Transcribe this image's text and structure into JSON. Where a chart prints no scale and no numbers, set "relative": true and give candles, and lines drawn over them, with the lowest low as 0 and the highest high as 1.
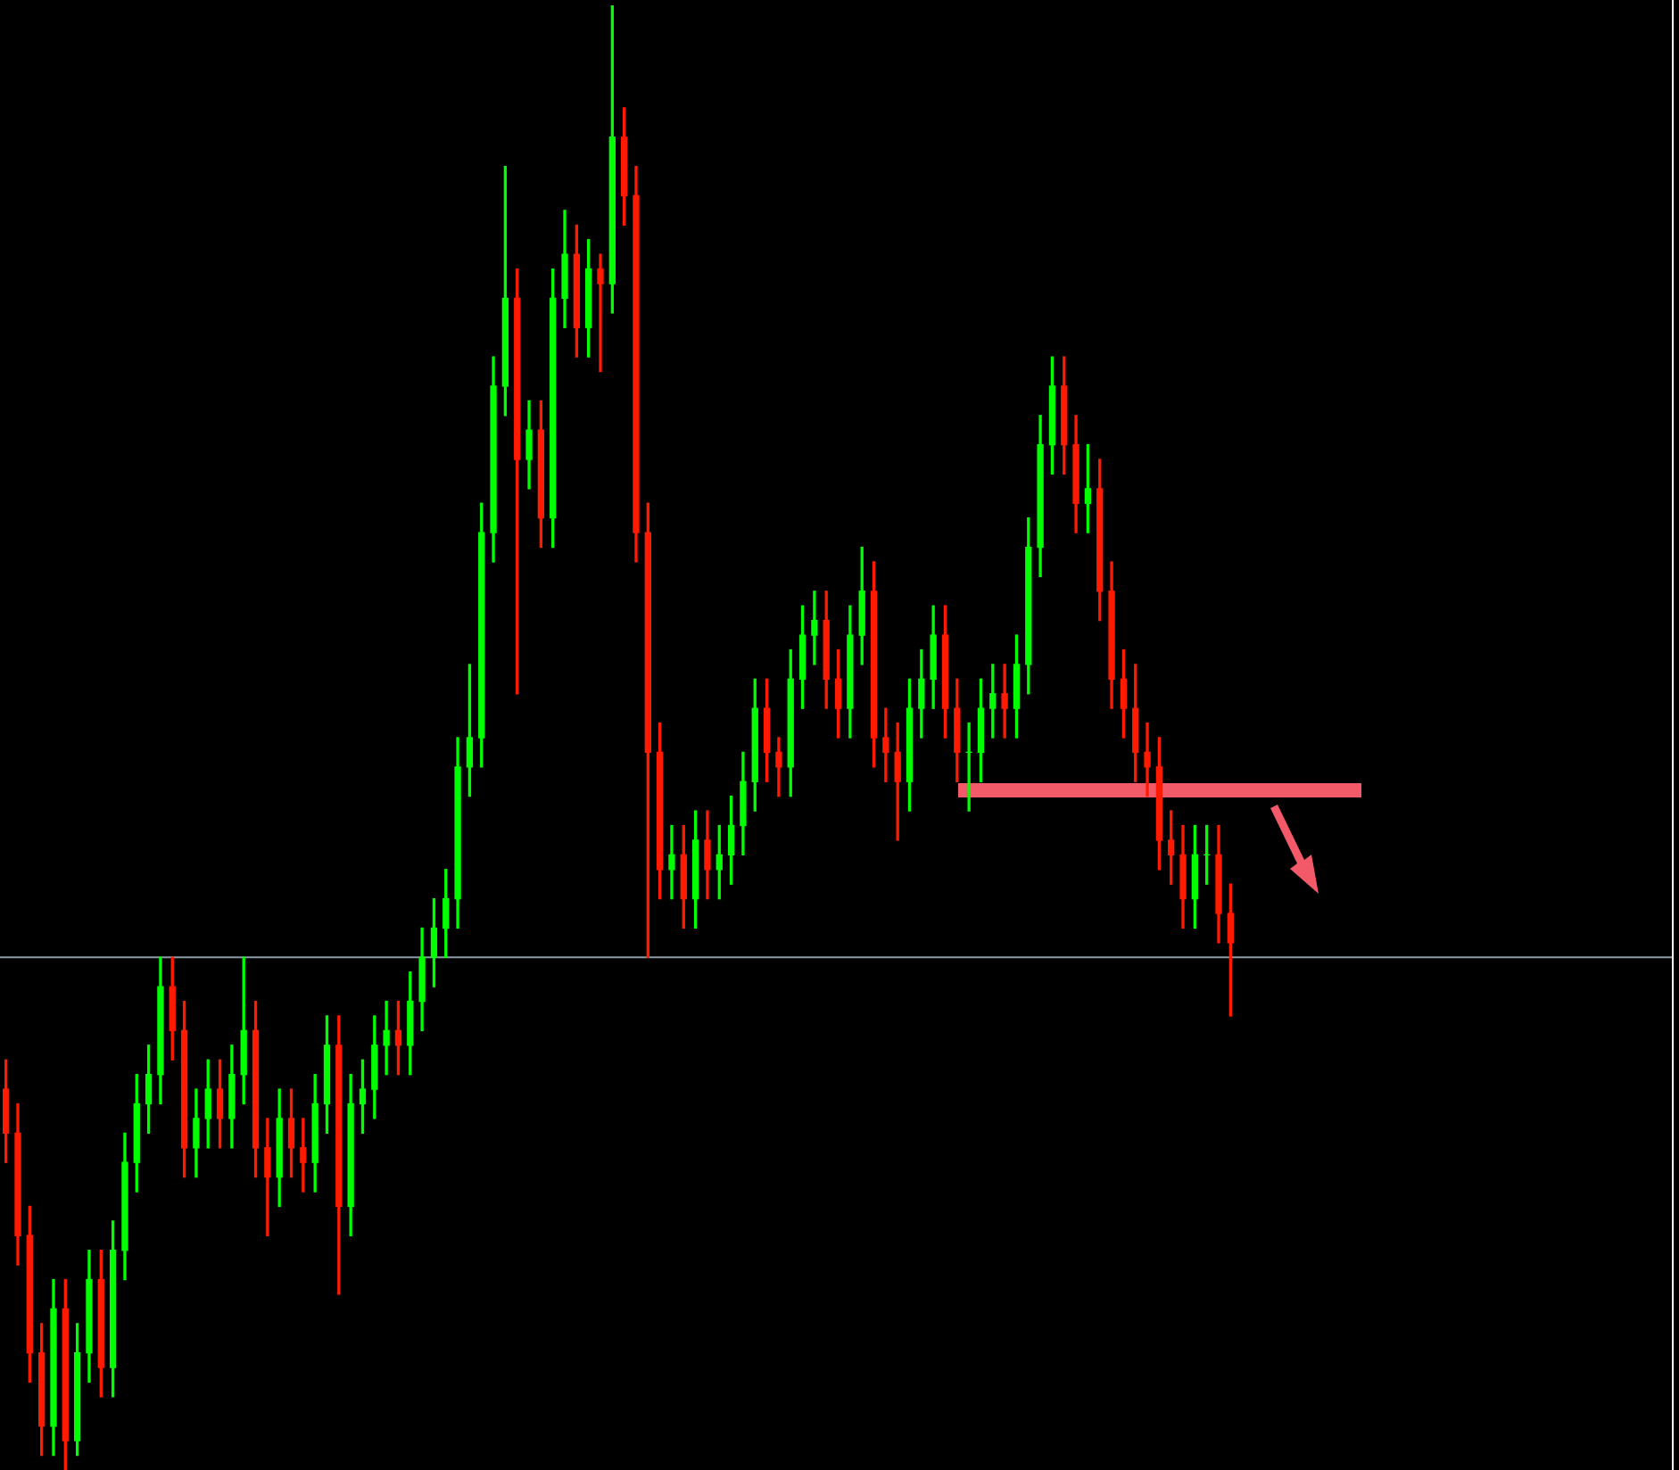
{
  "chart_data": {
    "type": "candlestick",
    "relative": true,
    "colors": [
      "#ff1a00",
      "#ff1a00",
      "#ff1a00",
      "#ff1a00",
      "#00ff00",
      "#ff1a00",
      "#00ff00",
      "#00ff00",
      "#ff1a00",
      "#00ff00",
      "#00ff00",
      "#00ff00",
      "#00ff00",
      "#00ff00",
      "#ff1a00",
      "#ff1a00",
      "#00ff00",
      "#00ff00",
      "#ff1a00",
      "#00ff00",
      "#00ff00",
      "#ff1a00",
      "#ff1a00",
      "#00ff00",
      "#ff1a00",
      "#ff1a00",
      "#00ff00",
      "#00ff00",
      "#ff1a00",
      "#00ff00",
      "#00ff00",
      "#00ff00",
      "#00ff00",
      "#ff1a00",
      "#00ff00",
      "#00ff00",
      "#00ff00",
      "#00ff00",
      "#00ff00",
      "#00ff00",
      "#00ff00",
      "#00ff00",
      "#00ff00",
      "#ff1a00",
      "#00ff00",
      "#ff1a00",
      "#00ff00",
      "#00ff00",
      "#ff1a00",
      "#00ff00",
      "#ff1a00",
      "#00ff00",
      "#ff1a00",
      "#ff1a00",
      "#ff1a00",
      "#ff1a00",
      "#00ff00",
      "#ff1a00",
      "#00ff00",
      "#ff1a00",
      "#00ff00",
      "#00ff00",
      "#00ff00",
      "#00ff00",
      "#ff1a00",
      "#ff1a00",
      "#00ff00",
      "#00ff00",
      "#00ff00",
      "#ff1a00",
      "#ff1a00",
      "#00ff00",
      "#00ff00",
      "#ff1a00",
      "#ff1a00",
      "#ff1a00",
      "#00ff00",
      "#00ff00",
      "#00ff00",
      "#ff1a00",
      "#ff1a00",
      "#00ff00",
      "#00ff00",
      "#00ff00",
      "#ff1a00",
      "#00ff00",
      "#00ff00",
      "#00ff00",
      "#00ff00",
      "#ff1a00",
      "#ff1a00",
      "#00ff00",
      "#ff1a00",
      "#ff1a00",
      "#ff1a00",
      "#ff1a00",
      "#ff1a00",
      "#ff1a00",
      "#ff1a00",
      "#ff1a00",
      "#00ff00",
      "#00ff00",
      "#ff1a00",
      "#ff1a00"
    ],
    "categories": [
      null,
      null,
      null,
      null,
      null,
      null,
      null,
      null,
      null,
      null,
      null,
      null,
      null,
      null,
      null,
      null,
      null,
      null,
      null,
      null,
      null,
      null,
      null,
      null,
      null,
      null,
      null,
      null,
      null,
      null,
      null,
      null,
      null,
      null,
      null,
      null,
      null,
      null,
      null,
      null,
      null,
      null,
      null,
      null,
      null,
      null,
      null,
      null,
      null,
      null,
      null,
      null,
      null,
      null,
      null,
      null,
      null,
      null,
      null,
      null,
      null,
      null,
      null,
      null,
      null,
      null,
      null,
      null,
      null,
      null,
      null,
      null,
      null,
      null,
      null,
      null,
      null,
      null,
      null,
      null,
      null,
      null,
      null,
      null,
      null,
      null,
      null,
      null,
      null,
      null,
      null,
      null,
      null,
      null,
      null,
      null,
      null,
      null,
      null,
      null,
      null,
      null,
      null,
      null
    ],
    "ohlc": [
      [
        0.26,
        0.28,
        0.21,
        0.23
      ],
      [
        0.23,
        0.25,
        0.14,
        0.16
      ],
      [
        0.16,
        0.18,
        0.06,
        0.08
      ],
      [
        0.08,
        0.1,
        0.01,
        0.03
      ],
      [
        0.03,
        0.13,
        0.01,
        0.11
      ],
      [
        0.11,
        0.13,
        0,
        0.02
      ],
      [
        0.02,
        0.1,
        0.01,
        0.08
      ],
      [
        0.08,
        0.15,
        0.06,
        0.13
      ],
      [
        0.13,
        0.15,
        0.05,
        0.07
      ],
      [
        0.07,
        0.17,
        0.05,
        0.15
      ],
      [
        0.15,
        0.23,
        0.13,
        0.21
      ],
      [
        0.21,
        0.27,
        0.19,
        0.25
      ],
      [
        0.25,
        0.29,
        0.23,
        0.27
      ],
      [
        0.27,
        0.35,
        0.25,
        0.33
      ],
      [
        0.33,
        0.35,
        0.28,
        0.3
      ],
      [
        0.3,
        0.32,
        0.2,
        0.22
      ],
      [
        0.22,
        0.26,
        0.2,
        0.24
      ],
      [
        0.24,
        0.28,
        0.22,
        0.26
      ],
      [
        0.26,
        0.28,
        0.22,
        0.24
      ],
      [
        0.24,
        0.29,
        0.22,
        0.27
      ],
      [
        0.27,
        0.35,
        0.25,
        0.3
      ],
      [
        0.3,
        0.32,
        0.2,
        0.22
      ],
      [
        0.22,
        0.24,
        0.16,
        0.2
      ],
      [
        0.2,
        0.26,
        0.18,
        0.24
      ],
      [
        0.24,
        0.26,
        0.2,
        0.22
      ],
      [
        0.22,
        0.24,
        0.19,
        0.21
      ],
      [
        0.21,
        0.27,
        0.19,
        0.25
      ],
      [
        0.25,
        0.31,
        0.23,
        0.29
      ],
      [
        0.29,
        0.31,
        0.12,
        0.18
      ],
      [
        0.18,
        0.27,
        0.16,
        0.25
      ],
      [
        0.25,
        0.28,
        0.23,
        0.26
      ],
      [
        0.26,
        0.31,
        0.24,
        0.29
      ],
      [
        0.29,
        0.32,
        0.27,
        0.3
      ],
      [
        0.3,
        0.32,
        0.27,
        0.29
      ],
      [
        0.29,
        0.34,
        0.27,
        0.32
      ],
      [
        0.32,
        0.37,
        0.3,
        0.35
      ],
      [
        0.35,
        0.39,
        0.33,
        0.37
      ],
      [
        0.37,
        0.41,
        0.35,
        0.39
      ],
      [
        0.39,
        0.5,
        0.37,
        0.48
      ],
      [
        0.48,
        0.55,
        0.46,
        0.5
      ],
      [
        0.5,
        0.66,
        0.48,
        0.64
      ],
      [
        0.64,
        0.76,
        0.62,
        0.74
      ],
      [
        0.74,
        0.89,
        0.72,
        0.8
      ],
      [
        0.8,
        0.82,
        0.53,
        0.69
      ],
      [
        0.69,
        0.73,
        0.67,
        0.71
      ],
      [
        0.71,
        0.73,
        0.63,
        0.65
      ],
      [
        0.65,
        0.82,
        0.63,
        0.8
      ],
      [
        0.8,
        0.86,
        0.78,
        0.83
      ],
      [
        0.83,
        0.85,
        0.76,
        0.78
      ],
      [
        0.78,
        0.84,
        0.76,
        0.82
      ],
      [
        0.82,
        0.83,
        0.75,
        0.81
      ],
      [
        0.81,
        1,
        0.79,
        0.91
      ],
      [
        0.91,
        0.93,
        0.85,
        0.87
      ],
      [
        0.87,
        0.89,
        0.62,
        0.64
      ],
      [
        0.64,
        0.66,
        0.35,
        0.49
      ],
      [
        0.49,
        0.51,
        0.39,
        0.41
      ],
      [
        0.41,
        0.44,
        0.39,
        0.42
      ],
      [
        0.42,
        0.44,
        0.37,
        0.39
      ],
      [
        0.39,
        0.45,
        0.37,
        0.43
      ],
      [
        0.43,
        0.45,
        0.39,
        0.41
      ],
      [
        0.41,
        0.44,
        0.39,
        0.42
      ],
      [
        0.42,
        0.46,
        0.4,
        0.44
      ],
      [
        0.44,
        0.49,
        0.42,
        0.47
      ],
      [
        0.47,
        0.54,
        0.45,
        0.52
      ],
      [
        0.52,
        0.54,
        0.47,
        0.49
      ],
      [
        0.49,
        0.5,
        0.46,
        0.48
      ],
      [
        0.48,
        0.56,
        0.46,
        0.54
      ],
      [
        0.54,
        0.59,
        0.52,
        0.57
      ],
      [
        0.57,
        0.6,
        0.55,
        0.58
      ],
      [
        0.58,
        0.6,
        0.52,
        0.54
      ],
      [
        0.54,
        0.56,
        0.5,
        0.52
      ],
      [
        0.52,
        0.59,
        0.5,
        0.57
      ],
      [
        0.57,
        0.63,
        0.55,
        0.6
      ],
      [
        0.6,
        0.62,
        0.48,
        0.5
      ],
      [
        0.5,
        0.52,
        0.47,
        0.49
      ],
      [
        0.49,
        0.51,
        0.43,
        0.47
      ],
      [
        0.47,
        0.54,
        0.45,
        0.52
      ],
      [
        0.52,
        0.56,
        0.5,
        0.54
      ],
      [
        0.54,
        0.59,
        0.52,
        0.57
      ],
      [
        0.57,
        0.59,
        0.5,
        0.52
      ],
      [
        0.52,
        0.54,
        0.47,
        0.49
      ],
      [
        0.49,
        0.51,
        0.45,
        0.49
      ],
      [
        0.49,
        0.54,
        0.47,
        0.52
      ],
      [
        0.52,
        0.55,
        0.5,
        0.53
      ],
      [
        0.53,
        0.55,
        0.5,
        0.52
      ],
      [
        0.52,
        0.57,
        0.5,
        0.55
      ],
      [
        0.55,
        0.65,
        0.53,
        0.63
      ],
      [
        0.63,
        0.72,
        0.61,
        0.7
      ],
      [
        0.7,
        0.76,
        0.68,
        0.74
      ],
      [
        0.74,
        0.76,
        0.68,
        0.7
      ],
      [
        0.7,
        0.72,
        0.64,
        0.66
      ],
      [
        0.66,
        0.7,
        0.64,
        0.67
      ],
      [
        0.67,
        0.69,
        0.58,
        0.6
      ],
      [
        0.6,
        0.62,
        0.52,
        0.54
      ],
      [
        0.54,
        0.56,
        0.5,
        0.52
      ],
      [
        0.52,
        0.55,
        0.47,
        0.49
      ],
      [
        0.49,
        0.51,
        0.46,
        0.48
      ],
      [
        0.48,
        0.5,
        0.41,
        0.43
      ],
      [
        0.43,
        0.45,
        0.4,
        0.42
      ],
      [
        0.42,
        0.44,
        0.37,
        0.39
      ],
      [
        0.39,
        0.44,
        0.37,
        0.42
      ],
      [
        0.42,
        0.44,
        0.4,
        0.42
      ],
      [
        0.42,
        0.44,
        0.36,
        0.38
      ],
      [
        0.38,
        0.4,
        0.31,
        0.36
      ]
    ],
    "ref_lines": [
      {
        "axis": "y",
        "value": 0.35,
        "color": "#8c9aa6"
      }
    ]
  }
}
